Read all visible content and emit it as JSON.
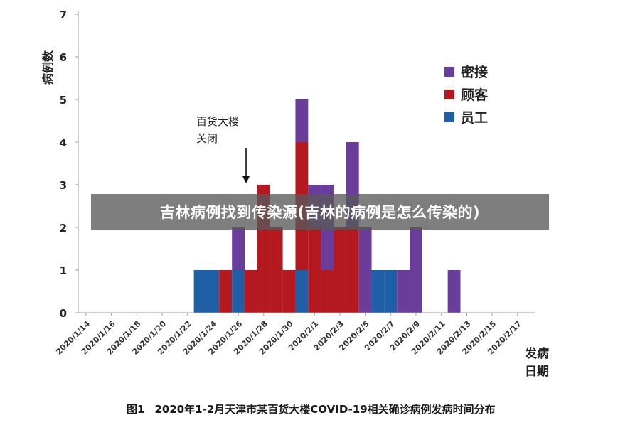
{
  "overlay": {
    "banner_text": "吉林病例找到传染源(吉林的病例是怎么传染的)"
  },
  "caption": {
    "figure_label": "图1",
    "text": "2020年1-2月天津市某百货大楼COVID-19相关确诊病例发病时间分布"
  },
  "chart_data": {
    "type": "bar",
    "stacked": true,
    "ylabel": "病例数",
    "xlabel": "发病日期",
    "ylim": [
      0,
      7
    ],
    "yticks": [
      0,
      1,
      2,
      3,
      4,
      5,
      6,
      7
    ],
    "x_tick_labels": [
      "2020/1/14",
      "2020/1/16",
      "2020/1/18",
      "2020/1/20",
      "2020/1/22",
      "2020/1/24",
      "2020/1/26",
      "2020/1/28",
      "2020/1/30",
      "2020/2/1",
      "2020/2/3",
      "2020/2/5",
      "2020/2/7",
      "2020/2/9",
      "2020/2/11",
      "2020/2/13",
      "2020/2/15",
      "2020/2/17"
    ],
    "categories": [
      "2020/1/14",
      "2020/1/15",
      "2020/1/16",
      "2020/1/17",
      "2020/1/18",
      "2020/1/19",
      "2020/1/20",
      "2020/1/21",
      "2020/1/22",
      "2020/1/23",
      "2020/1/24",
      "2020/1/25",
      "2020/1/26",
      "2020/1/27",
      "2020/1/28",
      "2020/1/29",
      "2020/1/30",
      "2020/1/31",
      "2020/2/1",
      "2020/2/2",
      "2020/2/3",
      "2020/2/4",
      "2020/2/5",
      "2020/2/6",
      "2020/2/7",
      "2020/2/8",
      "2020/2/9",
      "2020/2/10",
      "2020/2/11",
      "2020/2/12",
      "2020/2/13",
      "2020/2/14",
      "2020/2/15",
      "2020/2/16",
      "2020/2/17",
      "2020/2/18",
      "2020/2/19"
    ],
    "series": [
      {
        "name": "员工",
        "color": "#1f5fa6",
        "values": [
          0,
          0,
          0,
          0,
          0,
          0,
          0,
          0,
          0,
          1,
          1,
          0,
          1,
          0,
          0,
          0,
          0,
          1,
          0,
          0,
          0,
          0,
          0,
          1,
          1,
          0,
          0,
          0,
          0,
          0,
          0,
          0,
          0,
          0,
          0,
          0,
          0
        ]
      },
      {
        "name": "顾客",
        "color": "#b3191f",
        "values": [
          0,
          0,
          0,
          0,
          0,
          0,
          0,
          0,
          0,
          0,
          0,
          1,
          0,
          1,
          3,
          2,
          1,
          3,
          2,
          1,
          2,
          2,
          0,
          0,
          0,
          0,
          0,
          0,
          0,
          0,
          0,
          0,
          0,
          0,
          0,
          0,
          0
        ]
      },
      {
        "name": "密接",
        "color": "#6a3d9a",
        "values": [
          0,
          0,
          0,
          0,
          0,
          0,
          0,
          0,
          0,
          0,
          0,
          0,
          1,
          0,
          0,
          0,
          0,
          1,
          1,
          2,
          0,
          2,
          2,
          0,
          0,
          1,
          2,
          0,
          0,
          1,
          0,
          0,
          0,
          0,
          0,
          0,
          0
        ]
      }
    ],
    "legend": {
      "position": "top-right",
      "order": [
        "密接",
        "顾客",
        "员工"
      ]
    },
    "annotations": [
      {
        "text": "百货大楼\n关闭",
        "x": "2020/1/27",
        "arrow_to_y": 3
      }
    ],
    "grid": false
  }
}
